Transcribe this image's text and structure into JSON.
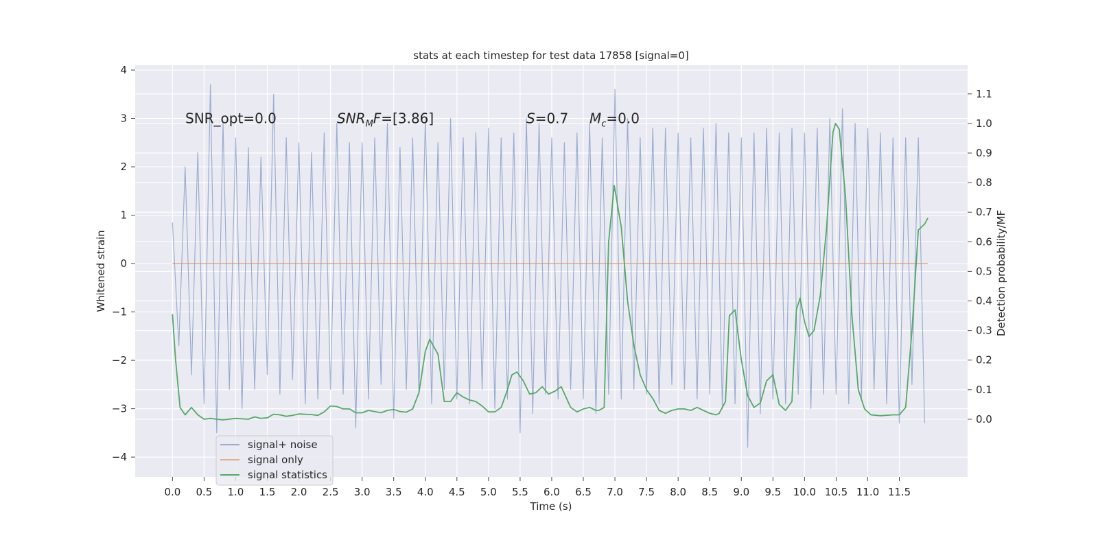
{
  "chart_data": {
    "type": "line",
    "title": "stats at each timestep for test data 17858 [signal=0]",
    "xlabel": "Time (s)",
    "ylabel": "Whitened strain",
    "y2label": "Detection probability/MF",
    "xlim": [
      -0.59,
      12.58
    ],
    "ylim": [
      -4.41,
      4.1
    ],
    "y2lim": [
      -0.195,
      1.197
    ],
    "xticks": [
      {
        "value": 0,
        "label": "0.0"
      },
      0.5,
      {
        "value": 1,
        "label": "1.0"
      },
      1.5,
      {
        "value": 2,
        "label": "2.0"
      },
      2.5,
      {
        "value": 3,
        "label": "3.0"
      },
      3.5,
      {
        "value": 4,
        "label": "4.0"
      },
      4.5,
      {
        "value": 5,
        "label": "5.0"
      },
      5.5,
      {
        "value": 6,
        "label": "6.0"
      },
      6.5,
      {
        "value": 7,
        "label": "7.0"
      },
      7.5,
      {
        "value": 8,
        "label": "8.0"
      },
      8.5,
      {
        "value": 9,
        "label": "9.0"
      },
      9.5,
      {
        "value": 10,
        "label": "10.0"
      },
      10.5,
      {
        "value": 11,
        "label": "11.0"
      },
      11.5
    ],
    "yticks": [
      {
        "value": -4,
        "label": "−4"
      },
      {
        "value": -3,
        "label": "−3"
      },
      {
        "value": -2,
        "label": "−2"
      },
      {
        "value": -1,
        "label": "−1"
      },
      0,
      1,
      2,
      3,
      4
    ],
    "y2ticks": [
      {
        "value": 0,
        "label": "0.0"
      },
      0.1,
      0.2,
      0.3,
      0.4,
      0.5,
      0.6,
      0.7,
      0.8,
      0.9,
      {
        "value": 1,
        "label": "1.0"
      },
      1.1
    ],
    "grid": true,
    "background": "#eaeaf2",
    "legend": "lower left",
    "annotations": [
      [
        "SNR_opt=0.0"
      ],
      [
        "SNR",
        "M",
        "F",
        "=[3.86]"
      ],
      [
        "S",
        "=0.7"
      ],
      [
        "M",
        "c",
        "=0.0"
      ]
    ],
    "series": [
      {
        "name": "signal+ noise",
        "color": "#4c72b0",
        "alpha": 0.5,
        "x": [
          0,
          0.1,
          0.2,
          0.3,
          0.4,
          0.5,
          0.6,
          0.7,
          0.8,
          0.9,
          1,
          1.1,
          1.2,
          1.3,
          1.4,
          1.5,
          1.6,
          1.7,
          1.8,
          1.9,
          2,
          2.1,
          2.2,
          2.3,
          2.4,
          2.5,
          2.6,
          2.7,
          2.8,
          2.9,
          3,
          3.1,
          3.2,
          3.3,
          3.4,
          3.5,
          3.6,
          3.7,
          3.8,
          3.9,
          4,
          4.1,
          4.2,
          4.3,
          4.4,
          4.5,
          4.6,
          4.7,
          4.8,
          4.9,
          5,
          5.1,
          5.2,
          5.3,
          5.4,
          5.5,
          5.6,
          5.7,
          5.8,
          5.9,
          6,
          6.1,
          6.2,
          6.3,
          6.4,
          6.5,
          6.6,
          6.7,
          6.8,
          6.9,
          7,
          7.1,
          7.2,
          7.3,
          7.4,
          7.5,
          7.6,
          7.7,
          7.8,
          7.9,
          8,
          8.1,
          8.2,
          8.3,
          8.4,
          8.5,
          8.6,
          8.7,
          8.8,
          8.9,
          9,
          9.1,
          9.2,
          9.3,
          9.4,
          9.5,
          9.6,
          9.7,
          9.8,
          9.9,
          10,
          10.1,
          10.2,
          10.3,
          10.4,
          10.5,
          10.6,
          10.7,
          10.8,
          10.9,
          11,
          11.1,
          11.2,
          11.3,
          11.4,
          11.5,
          11.6,
          11.7,
          11.8,
          11.9
        ],
        "values": [
          0.85,
          -1.7,
          2.0,
          -2.3,
          2.3,
          -2.9,
          3.7,
          -3.5,
          2.9,
          -2.6,
          2.6,
          -3.0,
          2.4,
          -2.6,
          2.2,
          -2.3,
          3.5,
          -2.7,
          2.6,
          -2.4,
          2.5,
          -2.9,
          2.3,
          -2.8,
          2.7,
          -2.6,
          2.9,
          -2.7,
          2.5,
          -3.4,
          2.5,
          -2.8,
          2.6,
          -2.5,
          2.9,
          -3.2,
          2.4,
          -2.6,
          2.6,
          -2.7,
          3.0,
          -2.9,
          2.5,
          -2.6,
          3.0,
          -2.8,
          2.6,
          -2.9,
          2.7,
          -2.6,
          2.8,
          -3.0,
          2.6,
          -2.8,
          2.7,
          -3.5,
          3.0,
          -3.1,
          2.9,
          -2.7,
          2.6,
          -2.8,
          2.5,
          -2.6,
          2.7,
          -2.8,
          2.9,
          -3.1,
          2.6,
          -2.7,
          3.6,
          -2.8,
          3.0,
          -2.6,
          2.6,
          -2.7,
          2.8,
          -2.9,
          2.8,
          -2.5,
          2.7,
          -2.6,
          2.6,
          -2.8,
          2.8,
          -2.7,
          2.9,
          -3.0,
          2.7,
          -2.9,
          2.6,
          -3.8,
          2.7,
          -3.1,
          2.8,
          -2.8,
          2.7,
          -2.9,
          2.8,
          -2.7,
          2.7,
          -3.0,
          2.8,
          -2.7,
          3.0,
          -2.7,
          3.2,
          -2.9,
          2.9,
          -2.8,
          2.8,
          -2.6,
          2.7,
          -2.9,
          2.6,
          -3.3,
          2.6,
          -2.5,
          2.6,
          -3.3
        ]
      },
      {
        "name": "signal only",
        "color": "#dd8452",
        "alpha": 0.6,
        "x": [
          0,
          11.95
        ],
        "values": [
          0,
          0
        ]
      },
      {
        "name": "signal statistics",
        "color": "#55a868",
        "alpha": 1,
        "axis": "y2",
        "x": [
          0,
          0.05,
          0.12,
          0.2,
          0.3,
          0.4,
          0.5,
          0.6,
          0.7,
          0.8,
          1,
          1.2,
          1.3,
          1.4,
          1.5,
          1.6,
          1.7,
          1.8,
          1.9,
          2,
          2.2,
          2.3,
          2.4,
          2.5,
          2.6,
          2.7,
          2.8,
          2.9,
          3,
          3.1,
          3.2,
          3.3,
          3.4,
          3.5,
          3.6,
          3.7,
          3.8,
          3.9,
          4,
          4.07,
          4.2,
          4.3,
          4.4,
          4.5,
          4.6,
          4.7,
          4.8,
          4.9,
          5,
          5.1,
          5.2,
          5.3,
          5.37,
          5.45,
          5.55,
          5.65,
          5.75,
          5.85,
          5.95,
          6.05,
          6.15,
          6.3,
          6.4,
          6.5,
          6.6,
          6.7,
          6.75,
          6.83,
          6.9,
          6.99,
          7.1,
          7.2,
          7.3,
          7.4,
          7.5,
          7.6,
          7.7,
          7.8,
          7.9,
          8,
          8.1,
          8.2,
          8.3,
          8.4,
          8.5,
          8.6,
          8.65,
          8.75,
          8.81,
          8.9,
          9,
          9.1,
          9.2,
          9.3,
          9.4,
          9.5,
          9.6,
          9.7,
          9.8,
          9.87,
          9.93,
          10,
          10.07,
          10.15,
          10.25,
          10.35,
          10.45,
          10.49,
          10.55,
          10.65,
          10.75,
          10.85,
          10.95,
          11.05,
          11.2,
          11.4,
          11.5,
          11.6,
          11.7,
          11.8,
          11.9,
          11.95
        ],
        "values": [
          0.355,
          0.2,
          0.04,
          0.015,
          0.04,
          0.015,
          0.0,
          0.003,
          0.0,
          -0.002,
          0.003,
          0.0,
          0.008,
          0.003,
          0.005,
          0.017,
          0.015,
          0.01,
          0.013,
          0.018,
          0.016,
          0.013,
          0.025,
          0.045,
          0.043,
          0.035,
          0.035,
          0.022,
          0.022,
          0.03,
          0.026,
          0.022,
          0.03,
          0.033,
          0.026,
          0.024,
          0.035,
          0.09,
          0.23,
          0.27,
          0.22,
          0.06,
          0.06,
          0.09,
          0.075,
          0.065,
          0.06,
          0.045,
          0.025,
          0.025,
          0.04,
          0.1,
          0.15,
          0.16,
          0.13,
          0.085,
          0.09,
          0.11,
          0.085,
          0.095,
          0.11,
          0.04,
          0.025,
          0.035,
          0.04,
          0.03,
          0.03,
          0.04,
          0.6,
          0.79,
          0.65,
          0.4,
          0.25,
          0.15,
          0.1,
          0.07,
          0.03,
          0.02,
          0.03,
          0.035,
          0.035,
          0.03,
          0.04,
          0.03,
          0.02,
          0.015,
          0.02,
          0.06,
          0.35,
          0.37,
          0.2,
          0.08,
          0.04,
          0.055,
          0.13,
          0.15,
          0.05,
          0.03,
          0.06,
          0.37,
          0.41,
          0.33,
          0.28,
          0.3,
          0.42,
          0.65,
          0.97,
          1.0,
          0.98,
          0.75,
          0.35,
          0.1,
          0.035,
          0.015,
          0.012,
          0.015,
          0.015,
          0.04,
          0.3,
          0.64,
          0.66,
          0.68
        ]
      }
    ]
  }
}
